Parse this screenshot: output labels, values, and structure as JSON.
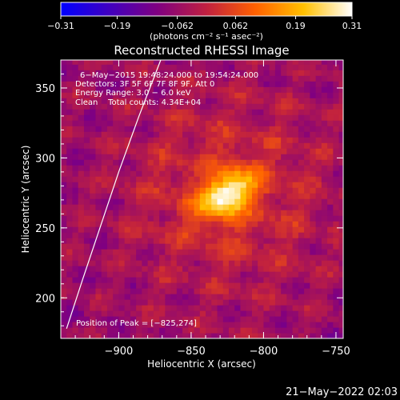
{
  "chart_data": {
    "type": "heatmap",
    "title": "Reconstructed RHESSI Image",
    "xlabel": "Heliocentric X (arcsec)",
    "ylabel": "Heliocentric Y (arcsec)",
    "xlim": [
      -940,
      -745
    ],
    "ylim": [
      171,
      370
    ],
    "xticks": [
      -900,
      -850,
      -800,
      -750
    ],
    "xtick_labels": [
      "−900",
      "−850",
      "−800",
      "−750"
    ],
    "yticks": [
      200,
      250,
      300,
      350
    ],
    "ytick_labels": [
      "200",
      "250",
      "300",
      "350"
    ],
    "colorbar": {
      "range": [
        -0.31,
        0.31
      ],
      "ticks": [
        -0.31,
        -0.19,
        -0.062,
        0.062,
        0.19,
        0.31
      ],
      "tick_labels": [
        "−0.31",
        "−0.19",
        "−0.062",
        "0.062",
        "0.19",
        "0.31"
      ],
      "units_label": "(photons cm⁻² s⁻¹ asec⁻²)",
      "colormap": [
        "#0000ff",
        "#4000c0",
        "#800080",
        "#c02040",
        "#ff6000",
        "#ffc000",
        "#ffffff"
      ]
    },
    "peak": {
      "x": -825,
      "y": 274,
      "value": 0.31
    },
    "limb_curve": [
      [
        -936,
        178
      ],
      [
        -925,
        213
      ],
      [
        -912,
        253
      ],
      [
        -900,
        290
      ],
      [
        -886,
        330
      ],
      [
        -871,
        370
      ]
    ],
    "annotations": [
      "6−May−2015 19:48:24.000 to 19:54:24.000",
      "Detectors: 3F 5F 6F 7F 8F 9F, Att 0",
      "Energy Range: 3.0 − 6.0 keV",
      "Clean    Total counts: 4.34E+04"
    ],
    "peak_label": "Position of Peak = [−825,274]"
  },
  "footer_date": "21−May−2022 02:03"
}
